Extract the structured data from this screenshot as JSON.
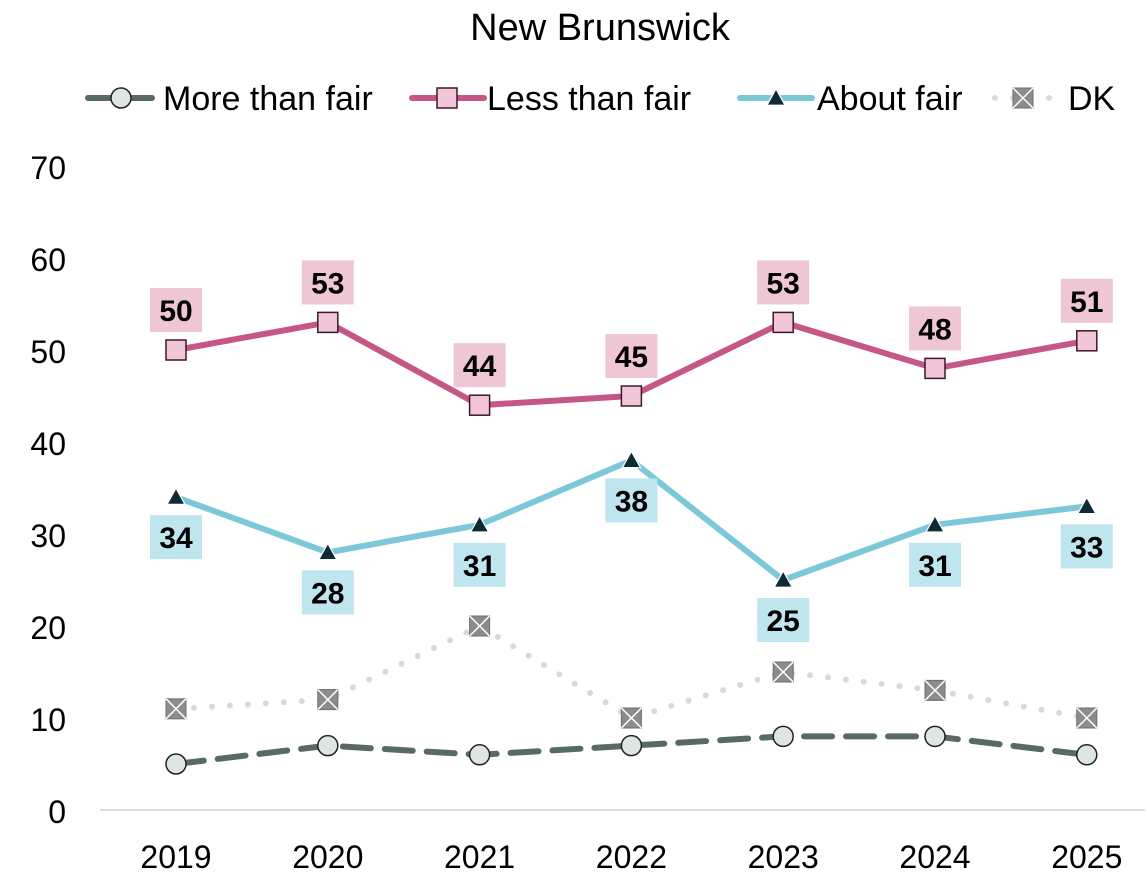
{
  "chart_data": {
    "type": "line",
    "title": "New Brunswick",
    "xlabel": "",
    "ylabel": "",
    "x": [
      "2019",
      "2020",
      "2021",
      "2022",
      "2023",
      "2024",
      "2025"
    ],
    "ylim": [
      0,
      70
    ],
    "yticks": [
      "0",
      "10",
      "20",
      "30",
      "40",
      "50",
      "60",
      "70"
    ],
    "grid": false,
    "legend": "top",
    "series": [
      {
        "name": "More than fair",
        "values": [
          5,
          7,
          6,
          7,
          8,
          8,
          6
        ],
        "color": "#576B63",
        "marker": "circle",
        "dash": "dashed",
        "labels": false
      },
      {
        "name": "Less than fair",
        "values": [
          50,
          53,
          44,
          45,
          53,
          48,
          51
        ],
        "color": "#C55786",
        "marker": "square",
        "dash": "solid",
        "labels": true,
        "label_position": "above",
        "label_bg": "#EFC6D6"
      },
      {
        "name": "About fair",
        "values": [
          34,
          28,
          31,
          38,
          25,
          31,
          33
        ],
        "color": "#7CC8D9",
        "marker": "triangle",
        "dash": "solid",
        "labels": true,
        "label_position": "below",
        "label_bg": "#BFE5EE"
      },
      {
        "name": "DK",
        "values": [
          11,
          12,
          20,
          10,
          15,
          13,
          10
        ],
        "color": "#D9D9D9",
        "marker": "xsquare",
        "dash": "dotted",
        "labels": false
      }
    ]
  }
}
